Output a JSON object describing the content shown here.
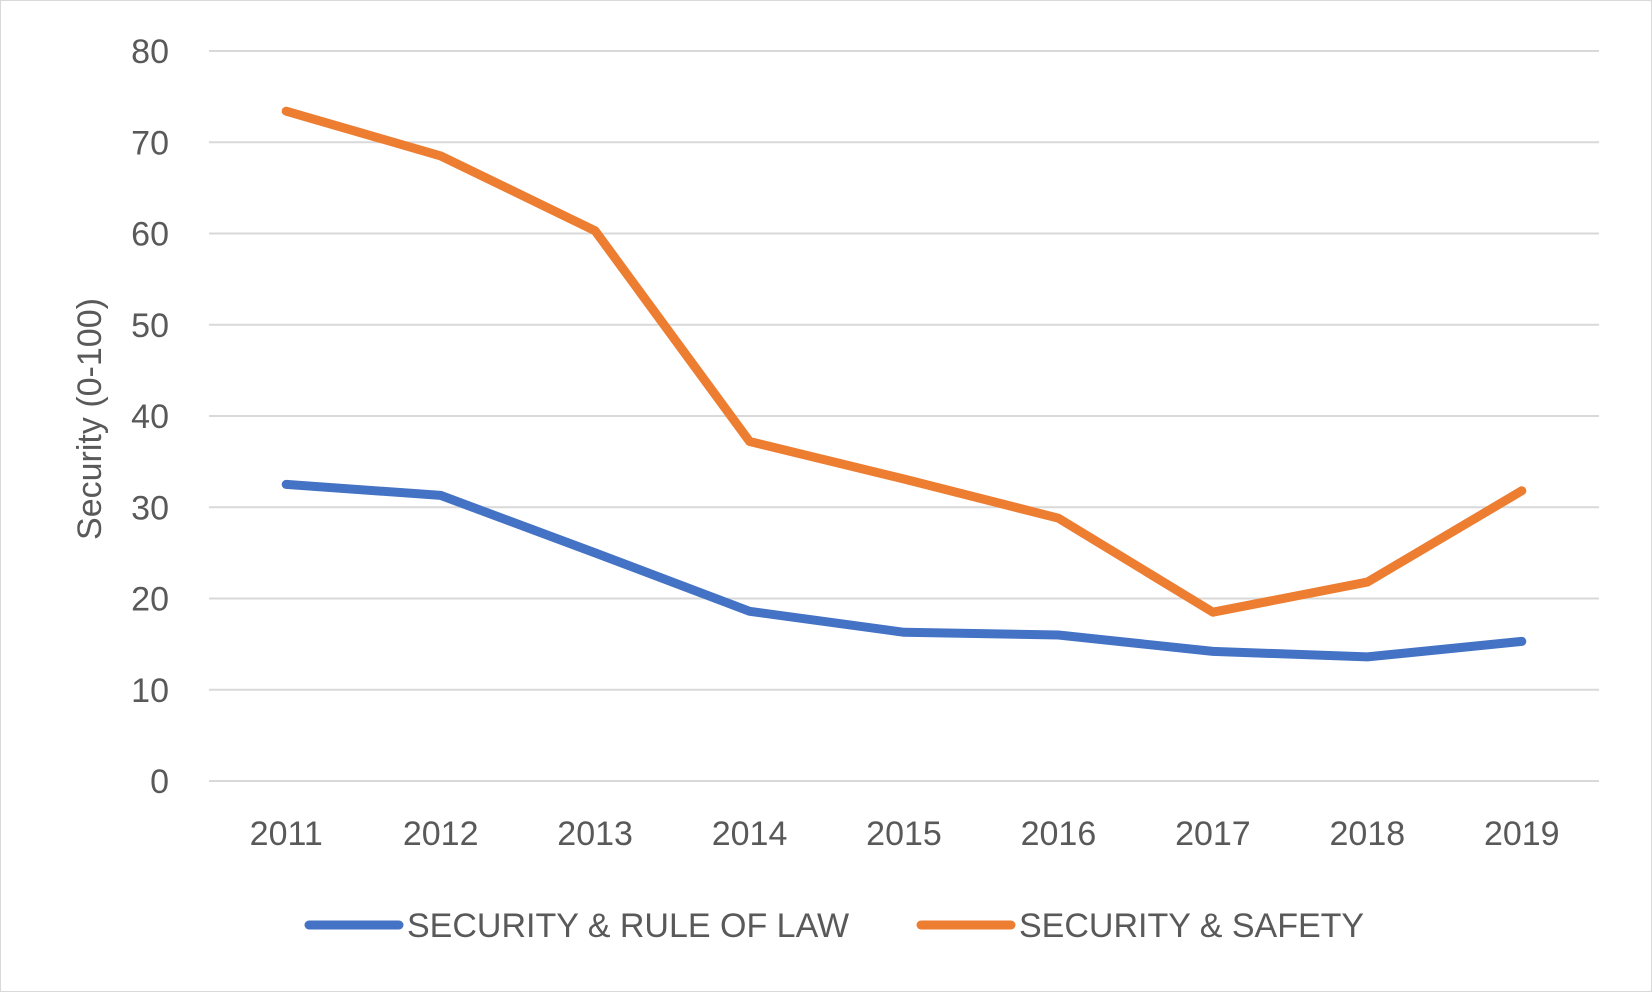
{
  "chart_data": {
    "type": "line",
    "title": "",
    "xlabel": "",
    "ylabel": "Security  (0-100)",
    "ylim": [
      0,
      80
    ],
    "yticks": [
      0,
      10,
      20,
      30,
      40,
      50,
      60,
      70,
      80
    ],
    "categories": [
      "2011",
      "2012",
      "2013",
      "2014",
      "2015",
      "2016",
      "2017",
      "2018",
      "2019"
    ],
    "grid": "horizontal",
    "legend": "bottom",
    "series": [
      {
        "name": "SECURITY & RULE OF LAW",
        "color": "#4472C4",
        "values": [
          32.5,
          31.3,
          25.0,
          18.6,
          16.3,
          16.0,
          14.2,
          13.6,
          15.3
        ]
      },
      {
        "name": "SECURITY & SAFETY",
        "color": "#ED7D31",
        "values": [
          73.4,
          68.5,
          60.3,
          37.2,
          33.1,
          28.8,
          18.5,
          21.8,
          31.8
        ]
      }
    ]
  }
}
